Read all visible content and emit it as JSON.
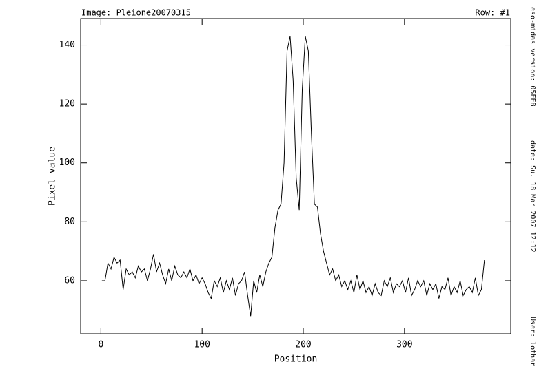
{
  "chart_data": {
    "type": "line",
    "header_left": "Image: Pleione20070315",
    "header_right": "Row: #1",
    "x_label": "Position",
    "y_label": "Pixel value",
    "side_version": "eso-midas version: 05FEB",
    "side_date": "date: Su. 18 Mar 2007 12:12",
    "side_user": "User: lothar",
    "xlim": [
      -20,
      405
    ],
    "ylim": [
      42,
      149
    ],
    "xticks": [
      0,
      100,
      200,
      300
    ],
    "yticks": [
      60,
      80,
      100,
      120,
      140
    ],
    "series": [
      {
        "color": "#000000",
        "x": [
          1,
          4,
          7,
          10,
          13,
          16,
          19,
          22,
          25,
          28,
          31,
          34,
          37,
          40,
          43,
          46,
          49,
          52,
          55,
          58,
          61,
          64,
          67,
          70,
          73,
          76,
          79,
          82,
          85,
          88,
          91,
          94,
          97,
          100,
          103,
          106,
          109,
          112,
          115,
          118,
          121,
          124,
          127,
          130,
          133,
          136,
          139,
          142,
          145,
          148,
          151,
          154,
          157,
          160,
          163,
          166,
          169,
          172,
          175,
          178,
          181,
          184,
          187,
          190,
          193,
          196,
          199,
          202,
          205,
          208,
          211,
          214,
          217,
          220,
          223,
          226,
          229,
          232,
          235,
          238,
          241,
          244,
          247,
          250,
          253,
          256,
          259,
          262,
          265,
          268,
          271,
          274,
          277,
          280,
          283,
          286,
          289,
          292,
          295,
          298,
          301,
          304,
          307,
          310,
          313,
          316,
          319,
          322,
          325,
          328,
          331,
          334,
          337,
          340,
          343,
          346,
          349,
          352,
          355,
          358,
          361,
          364,
          367,
          370,
          373,
          376,
          379
        ],
        "values": [
          60,
          60,
          66,
          64,
          68,
          66,
          67,
          57,
          64,
          62,
          63,
          61,
          65,
          63,
          64,
          60,
          64,
          69,
          63,
          66,
          62,
          59,
          64,
          60,
          65,
          62,
          61,
          63,
          61,
          64,
          60,
          62,
          59,
          61,
          59,
          56,
          54,
          60,
          58,
          61,
          56,
          60,
          57,
          61,
          55,
          59,
          60,
          63,
          55,
          48,
          60,
          56,
          62,
          58,
          63,
          66,
          68,
          78,
          84,
          86,
          100,
          138,
          143,
          128,
          95,
          84,
          125,
          143,
          138,
          110,
          86,
          85,
          76,
          70,
          66,
          62,
          64,
          60,
          62,
          58,
          60,
          57,
          60,
          56,
          62,
          57,
          60,
          56,
          58,
          55,
          59,
          56,
          55,
          60,
          58,
          61,
          56,
          59,
          58,
          60,
          56,
          61,
          55,
          57,
          60,
          58,
          60,
          55,
          59,
          57,
          59,
          54,
          58,
          57,
          61,
          55,
          58,
          56,
          60,
          55,
          57,
          58,
          56,
          61,
          55,
          57,
          67
        ]
      }
    ]
  }
}
